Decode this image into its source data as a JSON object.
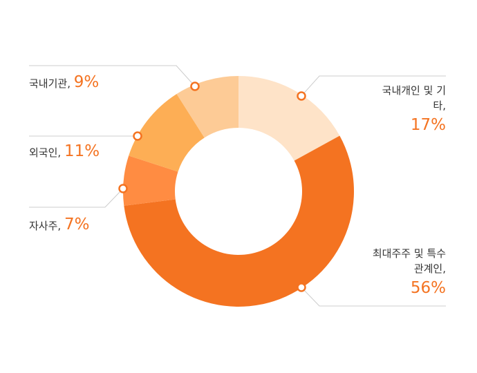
{
  "chart_data": {
    "type": "donut",
    "categories": [
      "국내개인 및 기타,",
      "최대주주 및 특수관계인,",
      "자사주,",
      "외국인,",
      "국내기관,"
    ],
    "values": [
      17,
      56,
      7,
      11,
      9
    ],
    "value_labels": [
      "17%",
      "56%",
      "7%",
      "11%",
      "9%"
    ],
    "colors": [
      "#fee3c8",
      "#f47321",
      "#ff8c42",
      "#fdae55",
      "#fdcb96"
    ]
  }
}
